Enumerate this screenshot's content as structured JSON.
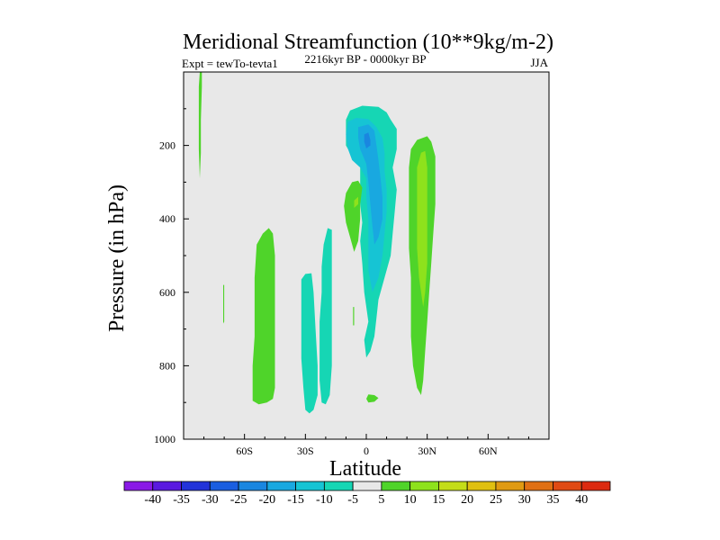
{
  "chart_data": {
    "type": "contour",
    "title": "Meridional Streamfunction (10**9kg/m-2)",
    "subtitle_left": "Expt = tewTo-tevta1",
    "subtitle_center": "2216kyr BP - 0000kyr BP",
    "subtitle_right": "JJA",
    "xlabel": "Latitude",
    "ylabel": "Pressure (in hPa)",
    "xlim": [
      -90,
      90
    ],
    "ylim": [
      1000,
      0
    ],
    "x_ticks": [
      {
        "value": -60,
        "label": "60S"
      },
      {
        "value": -30,
        "label": "30S"
      },
      {
        "value": 0,
        "label": "0"
      },
      {
        "value": 30,
        "label": "30N"
      },
      {
        "value": 60,
        "label": "60N"
      }
    ],
    "y_ticks": [
      {
        "value": 200,
        "label": "200"
      },
      {
        "value": 400,
        "label": "400"
      },
      {
        "value": 600,
        "label": "600"
      },
      {
        "value": 800,
        "label": "800"
      },
      {
        "value": 1000,
        "label": "1000"
      }
    ],
    "background_color": "#e8e8e8",
    "colorbar": {
      "levels": [
        "-40",
        "-35",
        "-30",
        "-25",
        "-20",
        "-15",
        "-10",
        "-5",
        "5",
        "10",
        "15",
        "20",
        "25",
        "30",
        "35",
        "40"
      ],
      "colors": [
        "#8a1ae6",
        "#5a1ae0",
        "#2233d9",
        "#1a5ee0",
        "#1a86e0",
        "#19a8e0",
        "#16c4d4",
        "#16d6b4",
        "#e8e8e8",
        "#4fd42a",
        "#8ee21c",
        "#c4dd18",
        "#e0c010",
        "#e09a12",
        "#e07014",
        "#e04a14",
        "#dc2a10"
      ]
    },
    "regions": [
      {
        "name": "Upper-tropical negative cell (-5)",
        "level": -5,
        "points": [
          [
            -8,
            105
          ],
          [
            -2,
            92
          ],
          [
            6,
            95
          ],
          [
            10,
            110
          ],
          [
            12,
            130
          ],
          [
            15,
            155
          ],
          [
            15,
            210
          ],
          [
            13,
            260
          ],
          [
            15,
            320
          ],
          [
            14,
            380
          ],
          [
            13,
            440
          ],
          [
            12,
            500
          ],
          [
            9,
            560
          ],
          [
            6,
            620
          ],
          [
            5,
            670
          ],
          [
            4,
            720
          ],
          [
            2,
            760
          ],
          [
            0,
            778
          ],
          [
            -1,
            730
          ],
          [
            1,
            680
          ],
          [
            -1,
            600
          ],
          [
            -2,
            520
          ],
          [
            -3,
            460
          ],
          [
            -2,
            410
          ],
          [
            -3,
            360
          ],
          [
            -3,
            300
          ],
          [
            -3,
            260
          ],
          [
            -4,
            230
          ],
          [
            -8,
            220
          ],
          [
            -10,
            200
          ],
          [
            -10,
            160
          ],
          [
            -10,
            130
          ]
        ]
      },
      {
        "name": "Upper-tropical negative cell (-10)",
        "level": -10,
        "points": [
          [
            -9,
            135
          ],
          [
            -5,
            125
          ],
          [
            1,
            128
          ],
          [
            5,
            150
          ],
          [
            8,
            180
          ],
          [
            9,
            220
          ],
          [
            9,
            270
          ],
          [
            10,
            320
          ],
          [
            10,
            380
          ],
          [
            9,
            440
          ],
          [
            8,
            500
          ],
          [
            6,
            560
          ],
          [
            3,
            600
          ],
          [
            1,
            540
          ],
          [
            1,
            470
          ],
          [
            1,
            400
          ],
          [
            0,
            340
          ],
          [
            0,
            290
          ],
          [
            -3,
            260
          ],
          [
            -7,
            240
          ],
          [
            -9,
            210
          ],
          [
            -10,
            170
          ]
        ]
      },
      {
        "name": "Upper-tropical negative core (-15)",
        "level": -15,
        "points": [
          [
            -4,
            150
          ],
          [
            1,
            143
          ],
          [
            4,
            160
          ],
          [
            5,
            200
          ],
          [
            6,
            240
          ],
          [
            7,
            290
          ],
          [
            8,
            340
          ],
          [
            8,
            400
          ],
          [
            6,
            450
          ],
          [
            4,
            470
          ],
          [
            3,
            420
          ],
          [
            2,
            360
          ],
          [
            1,
            300
          ],
          [
            0,
            250
          ],
          [
            -3,
            210
          ],
          [
            -4,
            180
          ]
        ]
      },
      {
        "name": "Upper-tropical negative core (-20)",
        "level": -20,
        "points": [
          [
            -1,
            170
          ],
          [
            1,
            165
          ],
          [
            2,
            185
          ],
          [
            2,
            200
          ],
          [
            0,
            208
          ],
          [
            -1,
            190
          ]
        ]
      },
      {
        "name": "Equatorial positive lobe (5)",
        "level": 5,
        "points": [
          [
            -11,
            365
          ],
          [
            -10,
            330
          ],
          [
            -7,
            300
          ],
          [
            -4,
            296
          ],
          [
            -2,
            315
          ],
          [
            -3,
            360
          ],
          [
            -3,
            400
          ],
          [
            -4,
            460
          ],
          [
            -6,
            490
          ],
          [
            -8,
            450
          ],
          [
            -10,
            410
          ]
        ]
      },
      {
        "name": "Equatorial positive lobe (10)",
        "level": 10,
        "points": [
          [
            -6,
            350
          ],
          [
            -4,
            340
          ],
          [
            -4,
            360
          ],
          [
            -6,
            370
          ]
        ]
      },
      {
        "name": "Subtropical positive cell NH (5)",
        "level": 5,
        "points": [
          [
            22,
            210
          ],
          [
            25,
            185
          ],
          [
            30,
            175
          ],
          [
            32,
            190
          ],
          [
            34,
            230
          ],
          [
            34,
            290
          ],
          [
            34,
            360
          ],
          [
            33,
            440
          ],
          [
            32,
            520
          ],
          [
            31,
            600
          ],
          [
            30,
            680
          ],
          [
            29,
            760
          ],
          [
            28,
            840
          ],
          [
            27,
            880
          ],
          [
            25,
            860
          ],
          [
            23,
            800
          ],
          [
            22,
            720
          ],
          [
            22,
            640
          ],
          [
            22,
            560
          ],
          [
            21,
            480
          ],
          [
            21,
            400
          ],
          [
            21,
            320
          ],
          [
            21,
            260
          ]
        ]
      },
      {
        "name": "Subtropical positive cell NH (10)",
        "level": 10,
        "points": [
          [
            25,
            260
          ],
          [
            27,
            220
          ],
          [
            29,
            215
          ],
          [
            30,
            260
          ],
          [
            30,
            340
          ],
          [
            30,
            420
          ],
          [
            30,
            520
          ],
          [
            29,
            600
          ],
          [
            28,
            640
          ],
          [
            26,
            560
          ],
          [
            25,
            480
          ],
          [
            25,
            400
          ],
          [
            25,
            320
          ]
        ]
      },
      {
        "name": "SH positive column",
        "level": 5,
        "points": [
          [
            -54,
            470
          ],
          [
            -51,
            440
          ],
          [
            -48,
            425
          ],
          [
            -46,
            440
          ],
          [
            -45,
            500
          ],
          [
            -45,
            580
          ],
          [
            -45,
            680
          ],
          [
            -45,
            780
          ],
          [
            -45,
            860
          ],
          [
            -46,
            890
          ],
          [
            -49,
            900
          ],
          [
            -53,
            905
          ],
          [
            -56,
            895
          ],
          [
            -56,
            860
          ],
          [
            -56,
            800
          ],
          [
            -55,
            720
          ],
          [
            -55,
            640
          ],
          [
            -55,
            560
          ]
        ]
      },
      {
        "name": "SH negative column",
        "level": -5,
        "points": [
          [
            -32,
            565
          ],
          [
            -30,
            550
          ],
          [
            -27,
            548
          ],
          [
            -26,
            600
          ],
          [
            -25,
            700
          ],
          [
            -24,
            800
          ],
          [
            -24,
            880
          ],
          [
            -26,
            920
          ],
          [
            -28,
            930
          ],
          [
            -30,
            920
          ],
          [
            -31,
            860
          ],
          [
            -32,
            780
          ],
          [
            -32,
            700
          ],
          [
            -32,
            620
          ]
        ]
      },
      {
        "name": "SH negative column east",
        "level": -5,
        "points": [
          [
            -21,
            470
          ],
          [
            -19,
            425
          ],
          [
            -17,
            430
          ],
          [
            -17,
            520
          ],
          [
            -17,
            620
          ],
          [
            -17,
            720
          ],
          [
            -17,
            800
          ],
          [
            -18,
            880
          ],
          [
            -20,
            905
          ],
          [
            -22,
            900
          ],
          [
            -23,
            840
          ],
          [
            -23,
            760
          ],
          [
            -23,
            680
          ],
          [
            -22,
            600
          ],
          [
            -22,
            530
          ]
        ]
      },
      {
        "name": "Polar narrow positive streak",
        "level": 5,
        "points": [
          [
            -82,
            0
          ],
          [
            -81,
            0
          ],
          [
            -81,
            40
          ],
          [
            -81.5,
            130
          ],
          [
            -81.5,
            220
          ],
          [
            -82,
            290
          ],
          [
            -82.5,
            210
          ],
          [
            -82.5,
            120
          ],
          [
            -82.5,
            40
          ]
        ]
      },
      {
        "name": "High-latitude small positive streak",
        "level": 5,
        "points": [
          [
            -70.5,
            580
          ],
          [
            -70,
            580
          ],
          [
            -70,
            680
          ],
          [
            -70.5,
            685
          ]
        ]
      },
      {
        "name": "Small positive fleck",
        "level": 5,
        "points": [
          [
            -6.5,
            640
          ],
          [
            -6,
            640
          ],
          [
            -6,
            690
          ],
          [
            -6.5,
            690
          ]
        ]
      },
      {
        "name": "Near-surface positive fleck",
        "level": 5,
        "points": [
          [
            1,
            878
          ],
          [
            4,
            880
          ],
          [
            6,
            888
          ],
          [
            4,
            898
          ],
          [
            1,
            900
          ],
          [
            0,
            890
          ]
        ]
      }
    ]
  }
}
